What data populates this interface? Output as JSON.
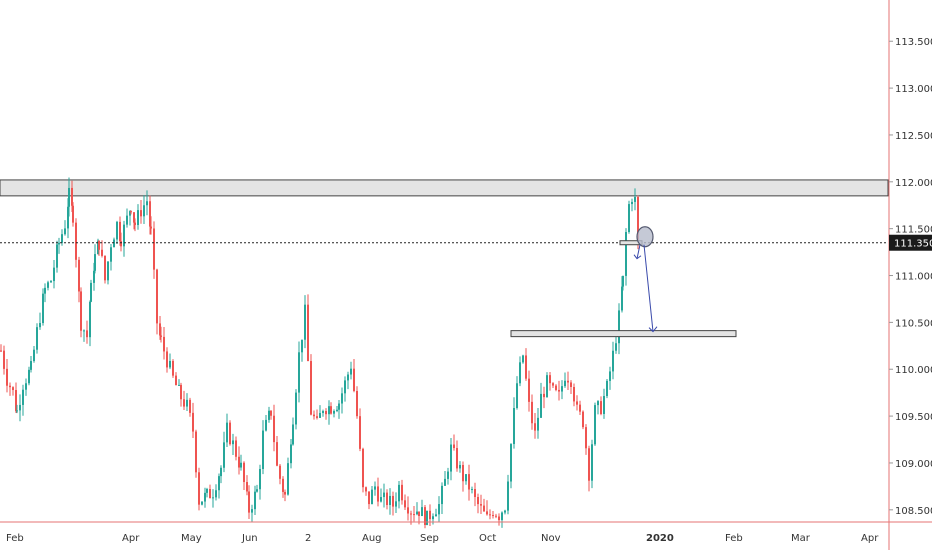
{
  "chart_data": {
    "type": "candlestick",
    "title": "",
    "xlabel": "",
    "ylabel": "",
    "ylim": [
      108.37,
      113.94
    ],
    "grid": false,
    "x_tick_labels": [
      "Feb",
      "Apr",
      "May",
      "Jun",
      "2",
      "Aug",
      "Sep",
      "Oct",
      "Nov",
      "2020",
      "Feb",
      "Mar",
      "Apr"
    ],
    "y_tick_labels": [
      "113.500",
      "113.000",
      "112.500",
      "112.000",
      "111.500",
      "111.000",
      "110.500",
      "110.000",
      "109.500",
      "109.000",
      "108.500"
    ],
    "y_tick_values": [
      113.5,
      113.0,
      112.5,
      112.0,
      111.5,
      111.0,
      110.5,
      110.0,
      109.5,
      109.0,
      108.5
    ],
    "current_price": 111.35,
    "current_price_label": "111.350",
    "candle_anchor_closes": [
      [
        0,
        110.2
      ],
      [
        6,
        109.9
      ],
      [
        12,
        109.75
      ],
      [
        16,
        109.55
      ],
      [
        22,
        109.85
      ],
      [
        30,
        110.0
      ],
      [
        36,
        110.4
      ],
      [
        44,
        110.85
      ],
      [
        50,
        110.95
      ],
      [
        58,
        111.35
      ],
      [
        64,
        111.55
      ],
      [
        68,
        111.85
      ],
      [
        72,
        111.65
      ],
      [
        80,
        110.5
      ],
      [
        86,
        110.35
      ],
      [
        90,
        110.85
      ],
      [
        94,
        111.2
      ],
      [
        98,
        111.35
      ],
      [
        104,
        110.95
      ],
      [
        110,
        111.35
      ],
      [
        116,
        111.55
      ],
      [
        120,
        111.4
      ],
      [
        126,
        111.6
      ],
      [
        130,
        111.75
      ],
      [
        134,
        111.55
      ],
      [
        140,
        111.7
      ],
      [
        146,
        111.8
      ],
      [
        150,
        111.45
      ],
      [
        156,
        110.5
      ],
      [
        160,
        110.3
      ],
      [
        166,
        110.1
      ],
      [
        172,
        109.9
      ],
      [
        180,
        109.7
      ],
      [
        186,
        109.6
      ],
      [
        192,
        109.35
      ],
      [
        198,
        108.6
      ],
      [
        206,
        108.65
      ],
      [
        212,
        108.7
      ],
      [
        220,
        108.95
      ],
      [
        226,
        109.35
      ],
      [
        232,
        109.2
      ],
      [
        240,
        108.95
      ],
      [
        248,
        108.5
      ],
      [
        256,
        108.7
      ],
      [
        262,
        109.3
      ],
      [
        270,
        109.55
      ],
      [
        276,
        108.95
      ],
      [
        284,
        108.65
      ],
      [
        292,
        109.5
      ],
      [
        298,
        110.15
      ],
      [
        304,
        110.6
      ],
      [
        310,
        109.55
      ],
      [
        316,
        109.4
      ],
      [
        322,
        109.6
      ],
      [
        330,
        109.6
      ],
      [
        338,
        109.65
      ],
      [
        344,
        109.85
      ],
      [
        350,
        110.05
      ],
      [
        356,
        109.5
      ],
      [
        362,
        108.7
      ],
      [
        368,
        108.6
      ],
      [
        374,
        108.75
      ],
      [
        380,
        108.6
      ],
      [
        386,
        108.6
      ],
      [
        392,
        108.55
      ],
      [
        398,
        108.75
      ],
      [
        404,
        108.6
      ],
      [
        410,
        108.5
      ],
      [
        418,
        108.5
      ],
      [
        426,
        108.4
      ],
      [
        432,
        108.5
      ],
      [
        438,
        108.55
      ],
      [
        444,
        108.8
      ],
      [
        450,
        109.15
      ],
      [
        456,
        109.0
      ],
      [
        462,
        108.85
      ],
      [
        468,
        108.75
      ],
      [
        474,
        108.6
      ],
      [
        480,
        108.5
      ],
      [
        486,
        108.4
      ],
      [
        492,
        108.5
      ],
      [
        498,
        108.45
      ],
      [
        504,
        108.55
      ],
      [
        510,
        109.2
      ],
      [
        516,
        109.85
      ],
      [
        522,
        110.15
      ],
      [
        528,
        109.6
      ],
      [
        534,
        109.3
      ],
      [
        540,
        109.7
      ],
      [
        546,
        109.85
      ],
      [
        552,
        109.75
      ],
      [
        558,
        109.7
      ],
      [
        564,
        109.95
      ],
      [
        570,
        109.9
      ],
      [
        576,
        109.55
      ],
      [
        582,
        109.45
      ],
      [
        588,
        108.9
      ],
      [
        594,
        109.55
      ],
      [
        600,
        109.6
      ],
      [
        606,
        109.8
      ],
      [
        612,
        110.15
      ],
      [
        618,
        110.55
      ],
      [
        622,
        110.95
      ],
      [
        625,
        111.45
      ],
      [
        628,
        111.75
      ],
      [
        631,
        111.85
      ],
      [
        634,
        111.8
      ],
      [
        637,
        111.35
      ]
    ],
    "shapes": {
      "resistance_zone": {
        "from": 111.85,
        "to": 112.02
      },
      "support_line": 110.38,
      "arrow_target": 110.38
    }
  }
}
